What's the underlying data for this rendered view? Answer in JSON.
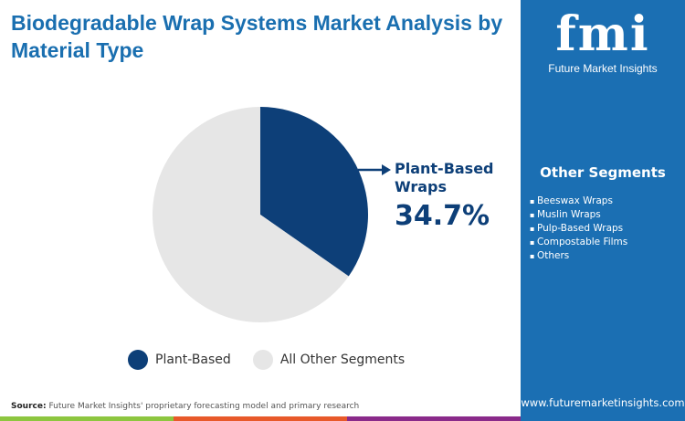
{
  "title": "Biodegradable Wrap Systems Market Analysis by Material Type",
  "logo": {
    "mark": "fmi",
    "name": "Future Market Insights"
  },
  "other_segments": {
    "heading": "Other Segments",
    "items": [
      "Beeswax Wraps",
      "Muslin Wraps",
      "Pulp-Based Wraps",
      "Compostable Films",
      "Others"
    ]
  },
  "source_label": "Source:",
  "source_text": "Future Market Insights' proprietary forecasting model and primary research",
  "website": "www.futuremarketinsights.com",
  "chart_data": {
    "type": "pie",
    "slices": [
      {
        "name": "Plant-Based",
        "value": 34.7,
        "color": "#0d3f78"
      },
      {
        "name": "All Other Segments",
        "value": 65.3,
        "color": "#e6e6e6"
      }
    ],
    "callout": {
      "label": "Plant-Based Wraps",
      "value": "34.7%"
    },
    "legend": [
      "Plant-Based",
      "All Other Segments"
    ],
    "legend_position": "bottom"
  }
}
